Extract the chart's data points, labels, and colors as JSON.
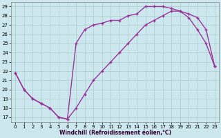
{
  "line1_x": [
    0,
    1,
    2,
    3,
    4,
    5,
    6,
    7,
    8,
    9,
    10,
    11,
    12,
    13,
    14,
    15,
    16,
    17,
    18,
    19,
    20,
    21,
    22,
    23
  ],
  "line1_y": [
    21.8,
    20.0,
    19.0,
    18.5,
    18.0,
    17.0,
    16.8,
    25.0,
    26.5,
    27.0,
    27.2,
    27.5,
    27.5,
    28.0,
    28.2,
    29.0,
    29.0,
    29.0,
    28.8,
    28.5,
    27.8,
    26.5,
    25.0,
    22.5
  ],
  "line2_x": [
    0,
    1,
    2,
    3,
    4,
    5,
    6,
    7,
    8,
    9,
    10,
    11,
    12,
    13,
    14,
    15,
    16,
    17,
    18,
    19,
    20,
    21,
    22,
    23
  ],
  "line2_y": [
    21.8,
    20.0,
    19.0,
    18.5,
    18.0,
    17.0,
    16.8,
    18.0,
    19.5,
    21.0,
    22.0,
    23.0,
    24.0,
    25.0,
    26.0,
    27.0,
    27.5,
    28.0,
    28.5,
    28.5,
    28.2,
    27.8,
    26.5,
    22.5
  ],
  "color": "#993399",
  "bg_color": "#cce8ee",
  "grid_color": "#aacccc",
  "xlabel": "Windchill (Refroidissement éolien,°C)",
  "xlim": [
    -0.5,
    23.5
  ],
  "ylim": [
    16.5,
    29.5
  ],
  "yticks": [
    17,
    18,
    19,
    20,
    21,
    22,
    23,
    24,
    25,
    26,
    27,
    28,
    29
  ],
  "xticks": [
    0,
    1,
    2,
    3,
    4,
    5,
    6,
    7,
    8,
    9,
    10,
    11,
    12,
    13,
    14,
    15,
    16,
    17,
    18,
    19,
    20,
    21,
    22,
    23
  ],
  "marker": "+",
  "markersize": 3,
  "linewidth": 1.0,
  "xlabel_fontsize": 5.5,
  "xlabel_color": "#330033",
  "tick_labelsize": 5.0
}
